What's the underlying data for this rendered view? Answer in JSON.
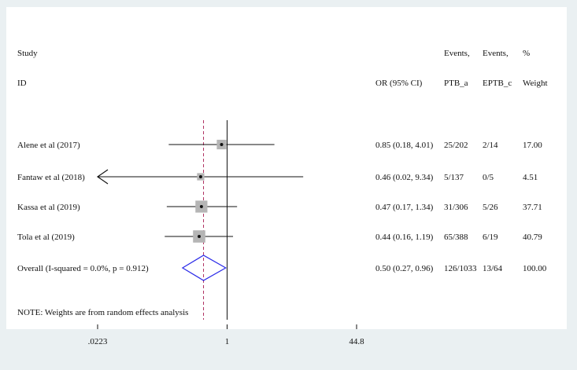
{
  "chart_data": {
    "type": "forest",
    "headers": {
      "study_line1": "Study",
      "study_line2": "ID",
      "or_header": "OR (95% CI)",
      "events_a_line1": "Events,",
      "events_a_line2": "PTB_a",
      "events_c_line1": "Events,",
      "events_c_line2": "EPTB_c",
      "weight_line1": "%",
      "weight_line2": "Weight"
    },
    "studies": [
      {
        "label": "Alene et al  (2017)",
        "or": 0.85,
        "lo": 0.18,
        "hi": 4.01,
        "ci_text": "0.85 (0.18, 4.01)",
        "events_a": "25/202",
        "events_c": "2/14",
        "weight_text": "17.00",
        "weight": 17.0,
        "arrow_left": false
      },
      {
        "label": "Fantaw et al (2018)",
        "or": 0.46,
        "lo": 0.02,
        "hi": 9.34,
        "ci_text": "0.46 (0.02, 9.34)",
        "events_a": "5/137",
        "events_c": "0/5",
        "weight_text": "4.51",
        "weight": 4.51,
        "arrow_left": true
      },
      {
        "label": "Kassa et al (2019)",
        "or": 0.47,
        "lo": 0.17,
        "hi": 1.34,
        "ci_text": "0.47 (0.17, 1.34)",
        "events_a": "31/306",
        "events_c": "5/26",
        "weight_text": "37.71",
        "weight": 37.71,
        "arrow_left": false
      },
      {
        "label": "Tola et al (2019)",
        "or": 0.44,
        "lo": 0.16,
        "hi": 1.19,
        "ci_text": "0.44 (0.16, 1.19)",
        "events_a": "65/388",
        "events_c": "6/19",
        "weight_text": "40.79",
        "weight": 40.79,
        "arrow_left": false
      }
    ],
    "overall": {
      "label": "Overall  (I-squared = 0.0%, p = 0.912)",
      "or": 0.5,
      "lo": 0.27,
      "hi": 0.96,
      "ci_text": "0.50 (0.27, 0.96)",
      "events_a": "126/1033",
      "events_c": "13/64",
      "weight_text": "100.00"
    },
    "note": "NOTE: Weights are from random effects analysis",
    "x_axis": {
      "scale": "log",
      "ticks": [
        0.0223,
        1,
        44.8
      ],
      "tick_labels": [
        ".0223",
        "1",
        "44.8"
      ]
    },
    "reference_line": 1,
    "colors": {
      "background": "#eaf0f2",
      "panel": "#ffffff",
      "line": "#111111",
      "box": "#b5b5b5",
      "diamond": "#2a2ae8",
      "overall_line": "#b03060"
    }
  }
}
